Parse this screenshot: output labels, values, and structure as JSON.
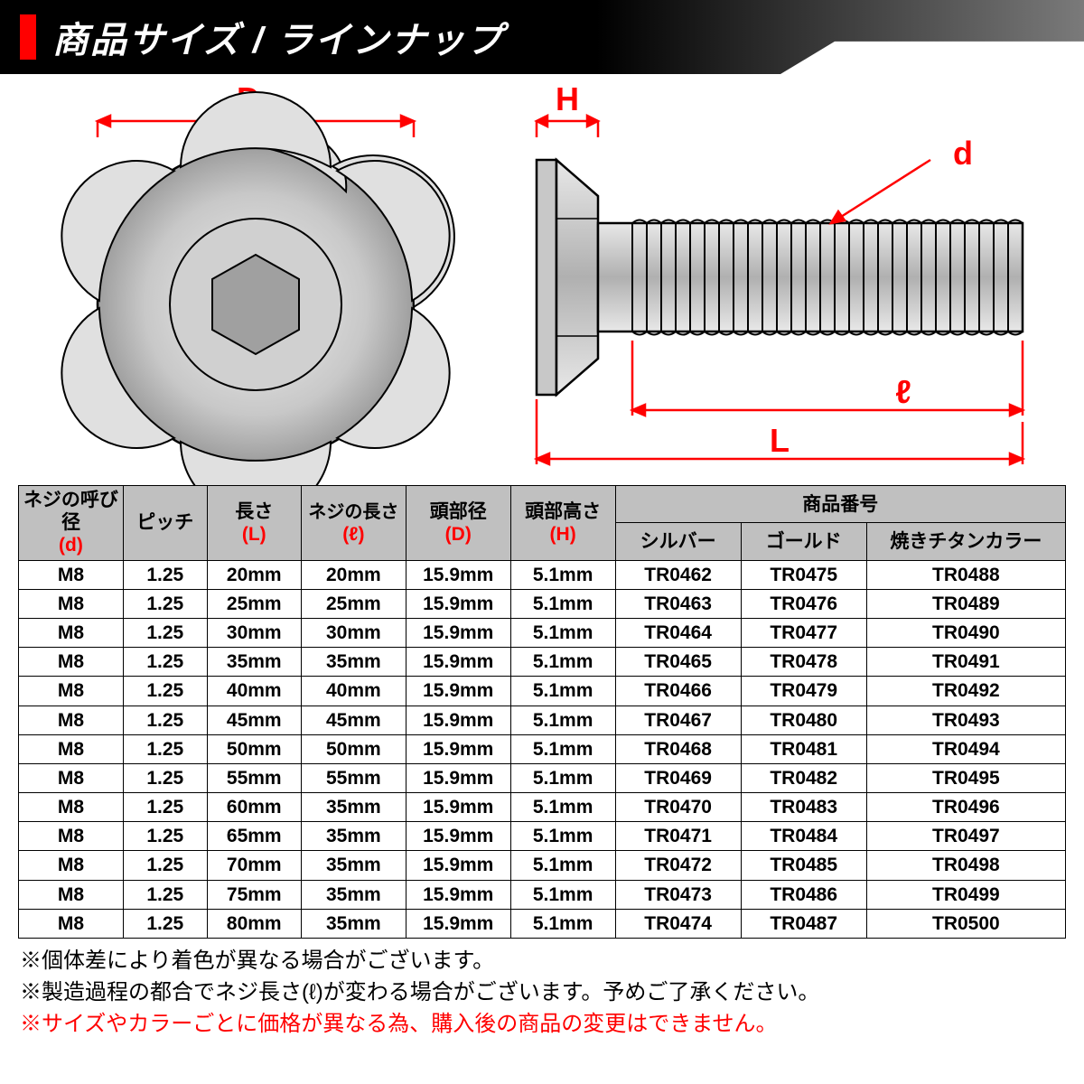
{
  "header": {
    "title": "商品サイズ / ラインナップ",
    "accent_color": "#ff0000"
  },
  "diagram": {
    "labels": {
      "D": "D",
      "H": "H",
      "d": "d",
      "l": "ℓ",
      "L": "L"
    },
    "colors": {
      "dimension": "#ff0000",
      "outline": "#000000",
      "fill_light": "#d8d8d8",
      "fill_dark": "#9e9e9e"
    }
  },
  "table": {
    "header_bg": "#c0c0c0",
    "columns": [
      {
        "line1": "ネジの呼び径",
        "line2": "(d)",
        "red": true
      },
      {
        "line1": "ピッチ",
        "red": false
      },
      {
        "line1": "長さ",
        "line2": "(L)",
        "red": true
      },
      {
        "line1": "ネジの長さ",
        "line2": "(ℓ)",
        "red": true
      },
      {
        "line1": "頭部径",
        "line2": "(D)",
        "red": true
      },
      {
        "line1": "頭部高さ",
        "line2": "(H)",
        "red": true
      }
    ],
    "product_group_header": "商品番号",
    "product_subheaders": [
      "シルバー",
      "ゴールド",
      "焼きチタンカラー"
    ],
    "rows": [
      [
        "M8",
        "1.25",
        "20mm",
        "20mm",
        "15.9mm",
        "5.1mm",
        "TR0462",
        "TR0475",
        "TR0488"
      ],
      [
        "M8",
        "1.25",
        "25mm",
        "25mm",
        "15.9mm",
        "5.1mm",
        "TR0463",
        "TR0476",
        "TR0489"
      ],
      [
        "M8",
        "1.25",
        "30mm",
        "30mm",
        "15.9mm",
        "5.1mm",
        "TR0464",
        "TR0477",
        "TR0490"
      ],
      [
        "M8",
        "1.25",
        "35mm",
        "35mm",
        "15.9mm",
        "5.1mm",
        "TR0465",
        "TR0478",
        "TR0491"
      ],
      [
        "M8",
        "1.25",
        "40mm",
        "40mm",
        "15.9mm",
        "5.1mm",
        "TR0466",
        "TR0479",
        "TR0492"
      ],
      [
        "M8",
        "1.25",
        "45mm",
        "45mm",
        "15.9mm",
        "5.1mm",
        "TR0467",
        "TR0480",
        "TR0493"
      ],
      [
        "M8",
        "1.25",
        "50mm",
        "50mm",
        "15.9mm",
        "5.1mm",
        "TR0468",
        "TR0481",
        "TR0494"
      ],
      [
        "M8",
        "1.25",
        "55mm",
        "55mm",
        "15.9mm",
        "5.1mm",
        "TR0469",
        "TR0482",
        "TR0495"
      ],
      [
        "M8",
        "1.25",
        "60mm",
        "35mm",
        "15.9mm",
        "5.1mm",
        "TR0470",
        "TR0483",
        "TR0496"
      ],
      [
        "M8",
        "1.25",
        "65mm",
        "35mm",
        "15.9mm",
        "5.1mm",
        "TR0471",
        "TR0484",
        "TR0497"
      ],
      [
        "M8",
        "1.25",
        "70mm",
        "35mm",
        "15.9mm",
        "5.1mm",
        "TR0472",
        "TR0485",
        "TR0498"
      ],
      [
        "M8",
        "1.25",
        "75mm",
        "35mm",
        "15.9mm",
        "5.1mm",
        "TR0473",
        "TR0486",
        "TR0499"
      ],
      [
        "M8",
        "1.25",
        "80mm",
        "35mm",
        "15.9mm",
        "5.1mm",
        "TR0474",
        "TR0487",
        "TR0500"
      ]
    ]
  },
  "notes": {
    "line1": "※個体差により着色が異なる場合がございます。",
    "line2": "※製造過程の都合でネジ長さ(ℓ)が変わる場合がございます。予めご了承ください。",
    "line3": "※サイズやカラーごとに価格が異なる為、購入後の商品の変更はできません。"
  }
}
